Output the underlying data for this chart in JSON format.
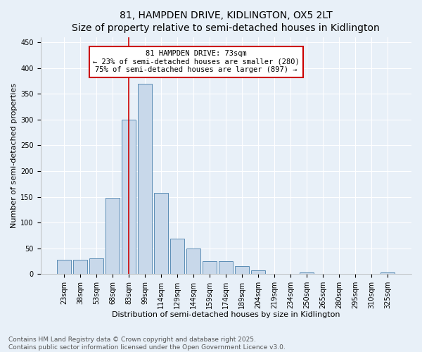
{
  "title": "81, HAMPDEN DRIVE, KIDLINGTON, OX5 2LT",
  "subtitle": "Size of property relative to semi-detached houses in Kidlington",
  "xlabel": "Distribution of semi-detached houses by size in Kidlington",
  "ylabel": "Number of semi-detached properties",
  "categories": [
    "23sqm",
    "38sqm",
    "53sqm",
    "68sqm",
    "83sqm",
    "99sqm",
    "114sqm",
    "129sqm",
    "144sqm",
    "159sqm",
    "174sqm",
    "189sqm",
    "204sqm",
    "219sqm",
    "234sqm",
    "250sqm",
    "265sqm",
    "280sqm",
    "295sqm",
    "310sqm",
    "325sqm"
  ],
  "values": [
    27,
    28,
    30,
    148,
    300,
    370,
    158,
    68,
    49,
    25,
    25,
    16,
    7,
    1,
    0,
    3,
    0,
    0,
    0,
    0,
    3
  ],
  "bar_color": "#c8d8ea",
  "bar_edge_color": "#5b8db5",
  "vline_pos": 4.0,
  "vline_color": "#cc0000",
  "annotation_text_line1": "81 HAMPDEN DRIVE: 73sqm",
  "annotation_text_line2": "← 23% of semi-detached houses are smaller (280)",
  "annotation_text_line3": "75% of semi-detached houses are larger (897) →",
  "annotation_box_color": "#ffffff",
  "annotation_box_edge_color": "#cc0000",
  "footer_line1": "Contains HM Land Registry data © Crown copyright and database right 2025.",
  "footer_line2": "Contains public sector information licensed under the Open Government Licence v3.0.",
  "ylim": [
    0,
    460
  ],
  "yticks": [
    0,
    50,
    100,
    150,
    200,
    250,
    300,
    350,
    400,
    450
  ],
  "background_color": "#e8f0f8",
  "grid_color": "#ffffff",
  "title_fontsize": 10,
  "subtitle_fontsize": 8.5,
  "axis_label_fontsize": 8,
  "tick_fontsize": 7,
  "annotation_fontsize": 7.5,
  "footer_fontsize": 6.5
}
